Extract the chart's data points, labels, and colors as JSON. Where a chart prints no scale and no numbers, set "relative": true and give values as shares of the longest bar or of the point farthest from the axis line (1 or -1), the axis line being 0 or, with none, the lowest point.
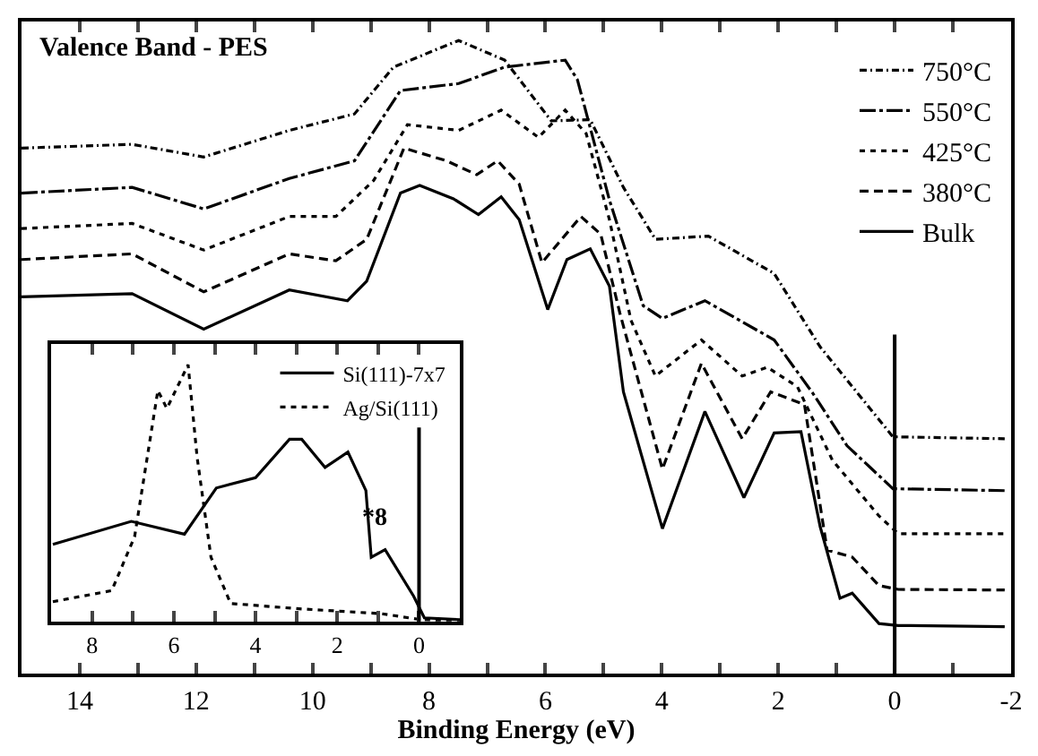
{
  "chart_data": [
    {
      "type": "line",
      "title": "Valence Band - PES",
      "xlabel": "Binding Energy (eV)",
      "relative": true,
      "legend": "top right",
      "xlim": [
        15,
        -2
      ],
      "xticks": [
        14,
        {
          "value": 13,
          "label": null
        },
        12,
        {
          "value": 11,
          "label": null
        },
        10,
        {
          "value": 9,
          "label": null
        },
        8,
        {
          "value": 7,
          "label": null
        },
        6,
        {
          "value": 5,
          "label": null
        },
        4,
        {
          "value": 3,
          "label": null
        },
        2,
        {
          "value": 1,
          "label": null
        },
        0,
        {
          "value": -1,
          "label": null
        },
        -2
      ],
      "ref_lines": [
        {
          "axis": "x",
          "value": 0,
          "color": "#000000"
        }
      ],
      "series": [
        {
          "name": "750°C",
          "color": "#000000",
          "line_style": "dashdot",
          "x": [
            15,
            13.1,
            11.87,
            10.4,
            9.28,
            8.61,
            7.49,
            6.7,
            5.9,
            5.23,
            4.66,
            4.11,
            3.2,
            2.07,
            1.28,
            0.03,
            -1.89
          ],
          "values": [
            0.83,
            0.836,
            0.816,
            0.858,
            0.884,
            0.958,
            1.0,
            0.969,
            0.873,
            0.875,
            0.768,
            0.686,
            0.691,
            0.632,
            0.516,
            0.374,
            0.371
          ]
        },
        {
          "name": "550°C",
          "color": "#000000",
          "line_style": "longdashdot",
          "x": [
            15,
            13.1,
            11.87,
            10.4,
            9.28,
            8.49,
            7.49,
            6.7,
            5.66,
            5.45,
            4.9,
            4.32,
            3.99,
            3.26,
            2.07,
            1.4,
            0.82,
            0.03,
            -1.89
          ],
          "values": [
            0.759,
            0.768,
            0.734,
            0.782,
            0.81,
            0.921,
            0.932,
            0.958,
            0.969,
            0.938,
            0.748,
            0.581,
            0.561,
            0.589,
            0.527,
            0.442,
            0.36,
            0.292,
            0.289
          ]
        },
        {
          "name": "425°C",
          "color": "#000000",
          "line_style": "dotted",
          "x": [
            15,
            13.1,
            11.87,
            10.4,
            9.6,
            8.95,
            8.37,
            7.49,
            6.76,
            6.12,
            5.66,
            5.3,
            4.9,
            4.53,
            4.11,
            3.32,
            2.62,
            2.19,
            1.67,
            1.07,
            0.27,
            -0.06,
            -1.89
          ],
          "values": [
            0.703,
            0.711,
            0.669,
            0.722,
            0.722,
            0.779,
            0.867,
            0.858,
            0.89,
            0.847,
            0.89,
            0.853,
            0.717,
            0.558,
            0.47,
            0.527,
            0.47,
            0.484,
            0.453,
            0.337,
            0.249,
            0.221,
            0.221
          ]
        },
        {
          "name": "380°C",
          "color": "#000000",
          "line_style": "dashed",
          "x": [
            15,
            13.1,
            11.87,
            10.4,
            9.6,
            9.07,
            8.43,
            7.7,
            7.18,
            6.82,
            6.45,
            6.06,
            5.39,
            5.05,
            4.72,
            3.99,
            3.32,
            2.62,
            2.13,
            1.55,
            1.16,
            0.73,
            0.27,
            -0.06,
            -1.89
          ],
          "values": [
            0.654,
            0.663,
            0.603,
            0.663,
            0.652,
            0.686,
            0.83,
            0.81,
            0.788,
            0.81,
            0.773,
            0.649,
            0.722,
            0.694,
            0.569,
            0.323,
            0.49,
            0.371,
            0.445,
            0.425,
            0.195,
            0.184,
            0.139,
            0.133,
            0.132
          ]
        },
        {
          "name": "Bulk",
          "color": "#000000",
          "line_style": "solid",
          "x": [
            15,
            13.1,
            11.87,
            10.4,
            9.4,
            9.07,
            8.49,
            8.16,
            7.58,
            7.15,
            6.76,
            6.45,
            5.96,
            5.63,
            5.23,
            4.9,
            4.66,
            3.99,
            3.26,
            2.59,
            2.07,
            1.61,
            1.28,
            0.94,
            0.73,
            0.27,
            -0.06,
            -1.89
          ],
          "values": [
            0.595,
            0.6,
            0.544,
            0.606,
            0.589,
            0.62,
            0.759,
            0.771,
            0.75,
            0.725,
            0.753,
            0.717,
            0.575,
            0.654,
            0.671,
            0.612,
            0.445,
            0.229,
            0.414,
            0.278,
            0.38,
            0.382,
            0.232,
            0.119,
            0.127,
            0.079,
            0.076,
            0.074
          ]
        }
      ]
    },
    {
      "type": "line",
      "relative": true,
      "legend": "top right",
      "xlim": [
        9,
        -1
      ],
      "xticks": [
        8,
        {
          "value": 7,
          "label": null
        },
        6,
        {
          "value": 5,
          "label": null
        },
        4,
        {
          "value": 3,
          "label": null
        },
        2,
        {
          "value": 1,
          "label": null
        },
        0
      ],
      "ref_lines": [
        {
          "axis": "x",
          "value": 0,
          "color": "#000000"
        }
      ],
      "annotations": [
        "*8"
      ],
      "series": [
        {
          "name": "Si(111)-7x7",
          "color": "#000000",
          "line_style": "solid",
          "x": [
            8.96,
            7.04,
            5.74,
            4.96,
            4.0,
            3.17,
            2.87,
            2.3,
            1.74,
            1.3,
            1.17,
            0.83,
            0.13,
            -0.13,
            -1.0
          ],
          "values": [
            0.3,
            0.39,
            0.34,
            0.52,
            0.56,
            0.71,
            0.71,
            0.6,
            0.66,
            0.51,
            0.25,
            0.28,
            0.098,
            0.014,
            0.007
          ]
        },
        {
          "name": "Ag/Si(111)",
          "color": "#000000",
          "line_style": "dotted",
          "x": [
            8.96,
            7.52,
            6.96,
            6.39,
            6.17,
            5.65,
            5.43,
            5.09,
            4.61,
            3.0,
            0.91,
            -0.04,
            -1.0
          ],
          "values": [
            0.077,
            0.12,
            0.33,
            0.9,
            0.83,
            1.0,
            0.64,
            0.25,
            0.07,
            0.05,
            0.03,
            0.007,
            0.0
          ]
        }
      ]
    }
  ]
}
